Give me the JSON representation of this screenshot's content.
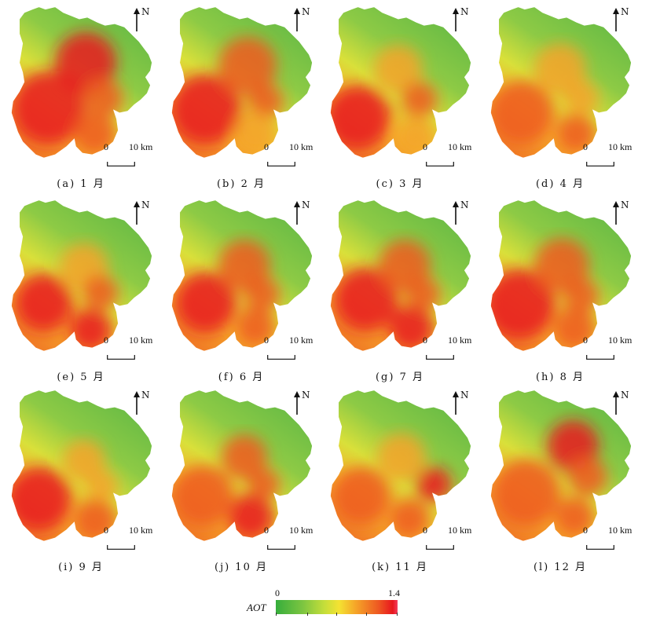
{
  "north_label": "N",
  "scale": {
    "zero": "0",
    "ten": "10 km"
  },
  "panels": [
    {
      "caption": "(a) 1 月",
      "month": 1
    },
    {
      "caption": "(b) 2 月",
      "month": 2
    },
    {
      "caption": "(c) 3 月",
      "month": 3
    },
    {
      "caption": "(d) 4 月",
      "month": 4
    },
    {
      "caption": "(e) 5 月",
      "month": 5
    },
    {
      "caption": "(f) 6 月",
      "month": 6
    },
    {
      "caption": "(g) 7 月",
      "month": 7
    },
    {
      "caption": "(h) 8 月",
      "month": 8
    },
    {
      "caption": "(i) 9 月",
      "month": 9
    },
    {
      "caption": "(j) 10 月",
      "month": 10
    },
    {
      "caption": "(k) 11 月",
      "month": 11
    },
    {
      "caption": "(l) 12 月",
      "month": 12
    }
  ],
  "legend": {
    "title": "AOT",
    "min": "0",
    "max": "1.4",
    "colors": [
      "#36ad3c",
      "#7cc541",
      "#c5de3a",
      "#f4e232",
      "#f5a328",
      "#ee5a22",
      "#e8171e",
      "#f43e5d"
    ]
  }
}
